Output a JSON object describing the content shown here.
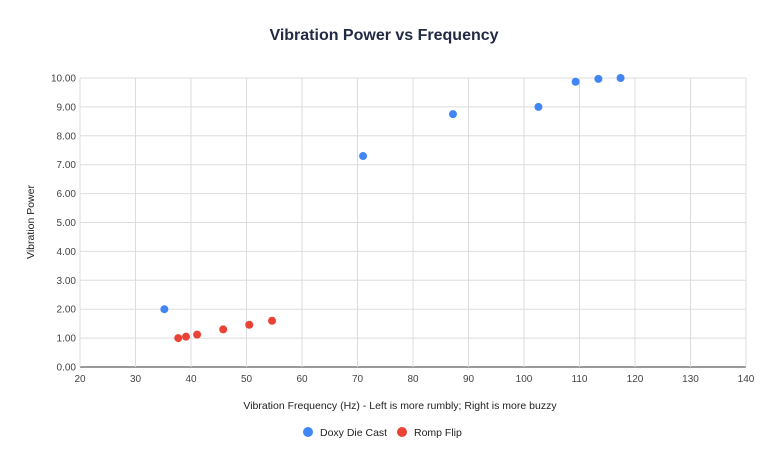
{
  "chart_data": {
    "type": "scatter",
    "title": "Vibration Power vs Frequency",
    "xlabel": "Vibration Frequency (Hz) - Left is more rumbly; Right is more buzzy",
    "ylabel": "Vibration Power",
    "xlim": [
      20,
      140
    ],
    "ylim": [
      0,
      10
    ],
    "xticks": [
      "20",
      "30",
      "40",
      "50",
      "60",
      "70",
      "80",
      "90",
      "100",
      "110",
      "120",
      "130",
      "140"
    ],
    "yticks": [
      "0.00",
      "1.00",
      "2.00",
      "3.00",
      "4.00",
      "5.00",
      "6.00",
      "7.00",
      "8.00",
      "9.00",
      "10.00"
    ],
    "grid": true,
    "legend_position": "bottom",
    "series": [
      {
        "name": "Doxy Die Cast",
        "color": "#4285f4",
        "points": [
          [
            35.2,
            2.0
          ],
          [
            71.0,
            7.3
          ],
          [
            87.2,
            8.75
          ],
          [
            102.6,
            9.0
          ],
          [
            109.3,
            9.87
          ],
          [
            113.4,
            9.97
          ],
          [
            117.4,
            10.0
          ]
        ]
      },
      {
        "name": "Romp Flip",
        "color": "#ea4335",
        "points": [
          [
            37.7,
            1.0
          ],
          [
            39.1,
            1.05
          ],
          [
            41.1,
            1.12
          ],
          [
            45.8,
            1.3
          ],
          [
            50.5,
            1.46
          ],
          [
            54.6,
            1.6
          ]
        ]
      }
    ]
  }
}
